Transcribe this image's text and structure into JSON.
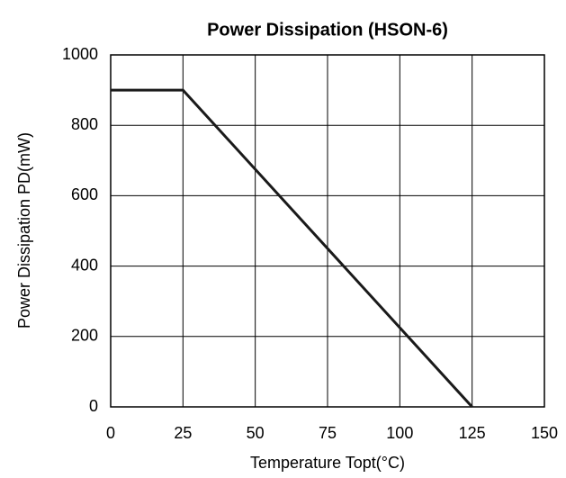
{
  "chart_data": {
    "type": "line",
    "title": "Power Dissipation (HSON-6)",
    "xlabel": "Temperature Topt(°C)",
    "ylabel": "Power Dissipation PD(mW)",
    "x": [
      0,
      25,
      125
    ],
    "series": [
      {
        "color": "#1a1a1a",
        "values": [
          900,
          900,
          0
        ]
      }
    ],
    "xlim": [
      0,
      150
    ],
    "xticks": [
      0,
      25,
      50,
      75,
      100,
      125,
      150
    ],
    "ylim": [
      0,
      1000
    ],
    "yticks": [
      0,
      200,
      400,
      600,
      800,
      1000
    ],
    "grid": true
  }
}
